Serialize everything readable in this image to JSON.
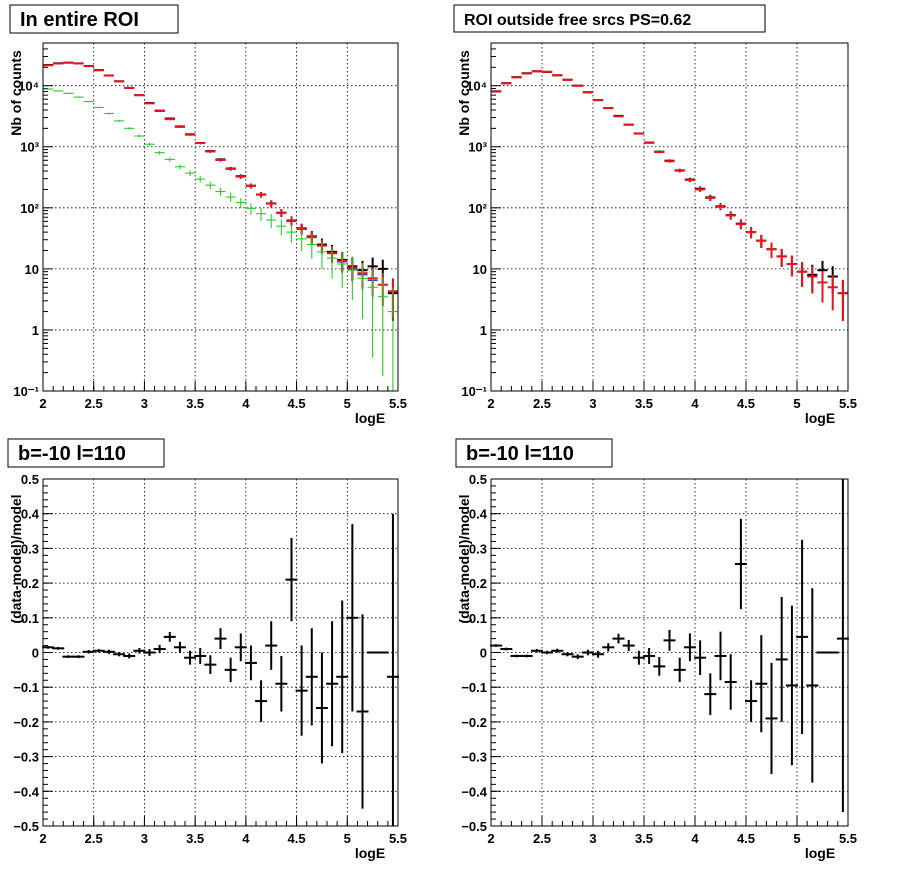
{
  "chart_data": [
    {
      "type": "scatter",
      "title": "In entire ROI",
      "xlabel": "logE",
      "ylabel": "Nb of counts",
      "log_y": true,
      "xlim": [
        2,
        5.5
      ],
      "ylim": [
        0.1,
        50000
      ],
      "grid": true,
      "x_ticks": [
        "2",
        "2.5",
        "3",
        "3.5",
        "4",
        "4.5",
        "5",
        "5.5"
      ],
      "y_ticks": [
        "10⁻¹",
        "1",
        "10",
        "10²",
        "10³",
        "10⁴"
      ],
      "series": [
        {
          "color": "#000000",
          "x": [
            2.05,
            2.15,
            2.25,
            2.35,
            2.45,
            2.55,
            2.65,
            2.75,
            2.85,
            2.95,
            3.05,
            3.15,
            3.25,
            3.35,
            3.45,
            3.55,
            3.65,
            3.75,
            3.85,
            3.95,
            4.05,
            4.15,
            4.25,
            4.35,
            4.45,
            4.55,
            4.65,
            4.75,
            4.85,
            4.95,
            5.05,
            5.15,
            5.25,
            5.35,
            5.45
          ],
          "y": [
            21800,
            23300,
            23800,
            23200,
            21000,
            18000,
            14700,
            11800,
            9200,
            7000,
            5200,
            3900,
            2900,
            2150,
            1600,
            1150,
            850,
            620,
            440,
            330,
            230,
            165,
            118,
            83,
            62,
            46,
            34,
            25,
            19,
            14,
            11,
            9.5,
            11,
            10,
            4
          ]
        },
        {
          "color": "#1f1fd6",
          "x": [
            2.05,
            2.15,
            2.25,
            2.35,
            2.45,
            2.55,
            2.65,
            2.75,
            2.85,
            2.95,
            3.05,
            3.15,
            3.25,
            3.35,
            3.45,
            3.55,
            3.65,
            3.75,
            3.85,
            3.95,
            4.05,
            4.15,
            4.25,
            4.35,
            4.45,
            4.55,
            4.65,
            4.75,
            4.85,
            4.95,
            5.05,
            5.15,
            5.25,
            5.35,
            5.45
          ],
          "y": [
            21500,
            23000,
            23800,
            23000,
            20800,
            17800,
            14600,
            11700,
            9200,
            7000,
            5100,
            3800,
            2800,
            2100,
            1560,
            1140,
            830,
            600,
            430,
            320,
            225,
            163,
            116,
            82,
            60,
            45,
            33,
            24,
            18,
            13,
            10,
            8,
            6.5,
            5.5,
            4.3
          ]
        },
        {
          "color": "#e8141d",
          "x": [
            2.05,
            2.15,
            2.25,
            2.35,
            2.45,
            2.55,
            2.65,
            2.75,
            2.85,
            2.95,
            3.05,
            3.15,
            3.25,
            3.35,
            3.45,
            3.55,
            3.65,
            3.75,
            3.85,
            3.95,
            4.05,
            4.15,
            4.25,
            4.35,
            4.45,
            4.55,
            4.65,
            4.75,
            4.85,
            4.95,
            5.05,
            5.15,
            5.25,
            5.35,
            5.45
          ],
          "y": [
            21600,
            23100,
            23900,
            23100,
            20900,
            17900,
            14650,
            11750,
            9200,
            7000,
            5150,
            3850,
            2830,
            2120,
            1580,
            1150,
            840,
            610,
            435,
            325,
            228,
            164,
            117,
            83,
            61,
            45,
            33,
            24,
            18,
            13.5,
            10.5,
            8.5,
            7,
            5.5,
            4.3
          ]
        },
        {
          "color": "#2bc92b",
          "x": [
            2.05,
            2.15,
            2.25,
            2.35,
            2.45,
            2.55,
            2.65,
            2.75,
            2.85,
            2.95,
            3.05,
            3.15,
            3.25,
            3.35,
            3.45,
            3.55,
            3.65,
            3.75,
            3.85,
            3.95,
            4.05,
            4.15,
            4.25,
            4.35,
            4.45,
            4.55,
            4.65,
            4.75,
            4.85,
            4.95,
            5.05,
            5.15,
            5.25,
            5.35,
            5.45
          ],
          "y": [
            8800,
            8200,
            7500,
            6500,
            5500,
            4400,
            3500,
            2650,
            2000,
            1500,
            1100,
            800,
            620,
            470,
            370,
            295,
            235,
            185,
            150,
            122,
            98,
            80,
            63,
            50,
            40,
            31,
            25,
            19,
            15,
            12,
            9.5,
            7,
            5,
            3.5,
            2
          ]
        }
      ]
    },
    {
      "type": "scatter",
      "title": "ROI outside free srcs PS=0.62",
      "xlabel": "logE",
      "ylabel": "Nb of counts",
      "log_y": true,
      "xlim": [
        2,
        5.5
      ],
      "ylim": [
        0.1,
        50000
      ],
      "grid": true,
      "x_ticks": [
        "2",
        "2.5",
        "3",
        "3.5",
        "4",
        "4.5",
        "5",
        "5.5"
      ],
      "y_ticks": [
        "10⁻¹",
        "1",
        "10",
        "10²",
        "10³",
        "10⁴"
      ],
      "series": [
        {
          "color": "#000000",
          "x": [
            2.05,
            2.15,
            2.25,
            2.35,
            2.45,
            2.55,
            2.65,
            2.75,
            2.85,
            2.95,
            3.05,
            3.15,
            3.25,
            3.35,
            3.45,
            3.55,
            3.65,
            3.75,
            3.85,
            3.95,
            4.05,
            4.15,
            4.25,
            4.35,
            4.45,
            4.55,
            4.65,
            4.75,
            4.85,
            4.95,
            5.05,
            5.15,
            5.25,
            5.35,
            5.45
          ],
          "y": [
            8100,
            11000,
            13800,
            16000,
            17200,
            16800,
            14800,
            12500,
            10000,
            7800,
            5800,
            4300,
            3200,
            2300,
            1650,
            1170,
            830,
            590,
            410,
            290,
            205,
            148,
            106,
            76,
            55,
            40,
            29,
            21,
            16,
            12,
            9,
            8,
            9.5,
            7.5,
            4
          ]
        },
        {
          "color": "#e8141d",
          "x": [
            2.05,
            2.15,
            2.25,
            2.35,
            2.45,
            2.55,
            2.65,
            2.75,
            2.85,
            2.95,
            3.05,
            3.15,
            3.25,
            3.35,
            3.45,
            3.55,
            3.65,
            3.75,
            3.85,
            3.95,
            4.05,
            4.15,
            4.25,
            4.35,
            4.45,
            4.55,
            4.65,
            4.75,
            4.85,
            4.95,
            5.05,
            5.15,
            5.25,
            5.35,
            5.45
          ],
          "y": [
            8000,
            10900,
            13700,
            15900,
            17300,
            16900,
            14850,
            12500,
            10000,
            7800,
            5800,
            4300,
            3150,
            2300,
            1640,
            1160,
            820,
            580,
            405,
            285,
            200,
            145,
            104,
            75,
            54,
            40,
            29,
            21,
            16,
            12,
            9,
            7.5,
            6,
            5,
            4
          ]
        }
      ]
    },
    {
      "type": "scatter",
      "title": "b=-10 l=110",
      "xlabel": "logE",
      "ylabel": "(data-model)/model",
      "xlim": [
        2,
        5.5
      ],
      "ylim": [
        -0.5,
        0.5
      ],
      "grid": true,
      "x_ticks": [
        "2",
        "2.5",
        "3",
        "3.5",
        "4",
        "4.5",
        "5",
        "5.5"
      ],
      "y_ticks": [
        "−0.5",
        "−0.4",
        "−0.3",
        "−0.2",
        "−0.1",
        "0",
        "0.1",
        "0.2",
        "0.3",
        "0.4",
        "0.5"
      ],
      "series": [
        {
          "color": "#000000",
          "x": [
            2.05,
            2.15,
            2.25,
            2.35,
            2.45,
            2.55,
            2.65,
            2.75,
            2.85,
            2.95,
            3.05,
            3.15,
            3.25,
            3.35,
            3.45,
            3.55,
            3.65,
            3.75,
            3.85,
            3.95,
            4.05,
            4.15,
            4.25,
            4.35,
            4.45,
            4.55,
            4.65,
            4.75,
            4.85,
            4.95,
            5.05,
            5.15,
            5.25,
            5.35,
            5.45
          ],
          "y": [
            0.015,
            0.012,
            -0.012,
            -0.012,
            0.002,
            0.005,
            0.002,
            -0.005,
            -0.01,
            0.005,
            0.0,
            0.01,
            0.045,
            0.015,
            -0.015,
            -0.01,
            -0.035,
            0.04,
            -0.05,
            0.015,
            -0.03,
            -0.14,
            0.02,
            -0.09,
            0.21,
            -0.11,
            -0.07,
            -0.16,
            -0.09,
            -0.07,
            0.1,
            -0.17,
            0.0,
            0.0,
            -0.07
          ],
          "yerr": [
            0.004,
            0.004,
            0.004,
            0.004,
            0.005,
            0.005,
            0.006,
            0.006,
            0.007,
            0.008,
            0.01,
            0.012,
            0.014,
            0.016,
            0.02,
            0.023,
            0.027,
            0.03,
            0.035,
            0.04,
            0.05,
            0.06,
            0.07,
            0.08,
            0.12,
            0.13,
            0.14,
            0.16,
            0.18,
            0.22,
            0.27,
            0.28,
            0.0,
            0.0,
            0.47
          ]
        }
      ]
    },
    {
      "type": "scatter",
      "title": "b=-10 l=110",
      "xlabel": "logE",
      "ylabel": "(data-model)/model",
      "xlim": [
        2,
        5.5
      ],
      "ylim": [
        -0.5,
        0.5
      ],
      "grid": true,
      "x_ticks": [
        "2",
        "2.5",
        "3",
        "3.5",
        "4",
        "4.5",
        "5",
        "5.5"
      ],
      "y_ticks": [
        "−0.5",
        "−0.4",
        "−0.3",
        "−0.2",
        "−0.1",
        "0",
        "0.1",
        "0.2",
        "0.3",
        "0.4",
        "0.5"
      ],
      "series": [
        {
          "color": "#000000",
          "x": [
            2.05,
            2.15,
            2.25,
            2.35,
            2.45,
            2.55,
            2.65,
            2.75,
            2.85,
            2.95,
            3.05,
            3.15,
            3.25,
            3.35,
            3.45,
            3.55,
            3.65,
            3.75,
            3.85,
            3.95,
            4.05,
            4.15,
            4.25,
            4.35,
            4.45,
            4.55,
            4.65,
            4.75,
            4.85,
            4.95,
            5.05,
            5.15,
            5.25,
            5.35,
            5.45
          ],
          "y": [
            0.02,
            0.01,
            -0.01,
            -0.01,
            0.005,
            0.0,
            0.005,
            -0.005,
            -0.012,
            0.0,
            -0.005,
            0.015,
            0.04,
            0.02,
            -0.015,
            -0.01,
            -0.04,
            0.035,
            -0.05,
            0.015,
            -0.015,
            -0.12,
            -0.01,
            -0.085,
            0.255,
            -0.14,
            -0.09,
            -0.19,
            -0.02,
            -0.095,
            0.045,
            -0.095,
            0.0,
            0.0,
            0.04
          ],
          "yerr": [
            0.004,
            0.004,
            0.004,
            0.004,
            0.005,
            0.005,
            0.006,
            0.006,
            0.007,
            0.008,
            0.01,
            0.012,
            0.014,
            0.016,
            0.02,
            0.023,
            0.027,
            0.03,
            0.035,
            0.04,
            0.05,
            0.06,
            0.07,
            0.08,
            0.13,
            0.06,
            0.14,
            0.16,
            0.18,
            0.23,
            0.28,
            0.28,
            0.0,
            0.0,
            0.5
          ]
        }
      ]
    }
  ]
}
